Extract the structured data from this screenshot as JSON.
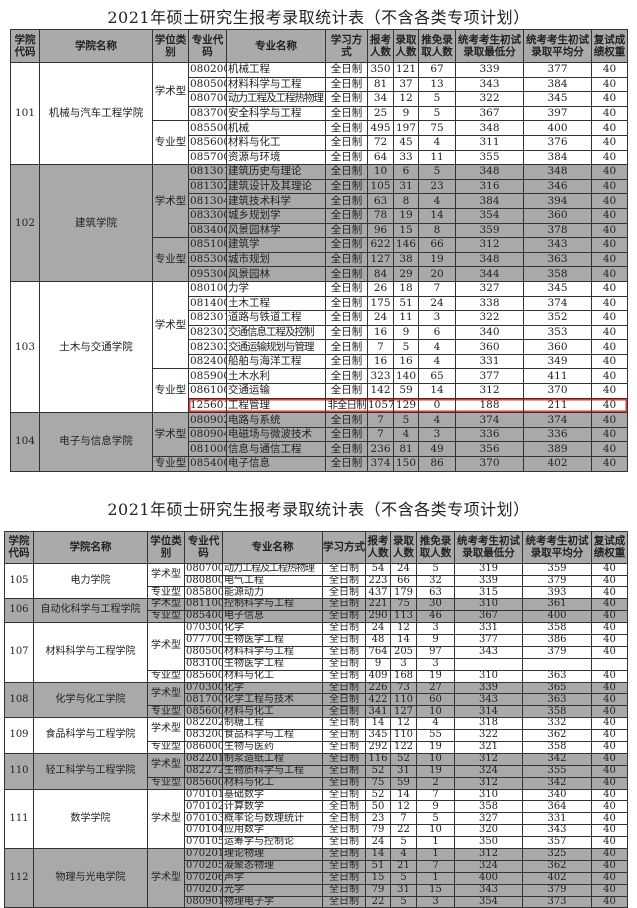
{
  "headers": [
    "学院代码",
    "学院名称",
    "学位类别",
    "专业代码",
    "专业名称",
    "学习方式",
    "报考人数",
    "录取人数",
    "推免录取人数",
    "统考考生初试录取最低分",
    "统考考生初试录取平均分",
    "复试成绩权重"
  ],
  "highlight_color": "#e53935",
  "shade_color": "#a9a9a9",
  "tables": [
    {
      "title": "2021年硕士研究生报考录取统计表（不含各类专项计划）",
      "colleges": [
        {
          "code": "101",
          "name": "机械与汽车工程学院",
          "shaded": false,
          "groups": [
            {
              "type": "学术型",
              "rows": [
                [
                  "080200",
                  "机械工程",
                  "全日制",
                  "350",
                  "121",
                  "67",
                  "339",
                  "377",
                  "40"
                ],
                [
                  "080500",
                  "材料科学与工程",
                  "全日制",
                  "81",
                  "37",
                  "13",
                  "343",
                  "384",
                  "40"
                ],
                [
                  "080700",
                  "动力工程及工程热物理",
                  "全日制",
                  "34",
                  "12",
                  "5",
                  "322",
                  "345",
                  "40"
                ],
                [
                  "083700",
                  "安全科学与工程",
                  "全日制",
                  "25",
                  "9",
                  "5",
                  "367",
                  "397",
                  "40"
                ]
              ]
            },
            {
              "type": "专业型",
              "rows": [
                [
                  "085500",
                  "机械",
                  "全日制",
                  "495",
                  "197",
                  "75",
                  "348",
                  "400",
                  "40"
                ],
                [
                  "085600",
                  "材料与化工",
                  "全日制",
                  "72",
                  "45",
                  "4",
                  "311",
                  "376",
                  "40"
                ],
                [
                  "085700",
                  "资源与环境",
                  "全日制",
                  "64",
                  "33",
                  "11",
                  "355",
                  "384",
                  "40"
                ]
              ]
            }
          ]
        },
        {
          "code": "102",
          "name": "建筑学院",
          "shaded": true,
          "groups": [
            {
              "type": "学术型",
              "rows": [
                [
                  "081301",
                  "建筑历史与理论",
                  "全日制",
                  "10",
                  "6",
                  "5",
                  "348",
                  "348",
                  "40"
                ],
                [
                  "081302",
                  "建筑设计及其理论",
                  "全日制",
                  "105",
                  "31",
                  "23",
                  "316",
                  "346",
                  "40"
                ],
                [
                  "081304",
                  "建筑技术科学",
                  "全日制",
                  "63",
                  "8",
                  "4",
                  "384",
                  "394",
                  "40"
                ],
                [
                  "083300",
                  "城乡规划学",
                  "全日制",
                  "78",
                  "19",
                  "14",
                  "354",
                  "360",
                  "40"
                ],
                [
                  "083400",
                  "风景园林学",
                  "全日制",
                  "96",
                  "15",
                  "8",
                  "359",
                  "378",
                  "40"
                ]
              ]
            },
            {
              "type": "专业型",
              "rows": [
                [
                  "085100",
                  "建筑学",
                  "全日制",
                  "622",
                  "146",
                  "66",
                  "312",
                  "343",
                  "40"
                ],
                [
                  "085300",
                  "城市规划",
                  "全日制",
                  "127",
                  "38",
                  "19",
                  "348",
                  "363",
                  "40"
                ],
                [
                  "095300",
                  "风景园林",
                  "全日制",
                  "84",
                  "29",
                  "20",
                  "344",
                  "358",
                  "40"
                ]
              ]
            }
          ]
        },
        {
          "code": "103",
          "name": "土木与交通学院",
          "shaded": false,
          "groups": [
            {
              "type": "学术型",
              "rows": [
                [
                  "080100",
                  "力学",
                  "全日制",
                  "26",
                  "18",
                  "7",
                  "327",
                  "345",
                  "40"
                ],
                [
                  "081400",
                  "土木工程",
                  "全日制",
                  "175",
                  "51",
                  "24",
                  "338",
                  "374",
                  "40"
                ],
                [
                  "082301",
                  "道路与铁道工程",
                  "全日制",
                  "24",
                  "11",
                  "3",
                  "322",
                  "352",
                  "40"
                ],
                [
                  "082302",
                  "交通信息工程及控制",
                  "全日制",
                  "16",
                  "9",
                  "6",
                  "340",
                  "353",
                  "40"
                ],
                [
                  "082303",
                  "交通运输规划与管理",
                  "全日制",
                  "7",
                  "5",
                  "4",
                  "360",
                  "360",
                  "40"
                ],
                [
                  "082400",
                  "船舶与海洋工程",
                  "全日制",
                  "16",
                  "16",
                  "4",
                  "331",
                  "349",
                  "40"
                ]
              ]
            },
            {
              "type": "专业型",
              "rows": [
                [
                  "085900",
                  "土木水利",
                  "全日制",
                  "323",
                  "140",
                  "65",
                  "377",
                  "411",
                  "40"
                ],
                [
                  "086100",
                  "交通运输",
                  "全日制",
                  "142",
                  "59",
                  "14",
                  "312",
                  "370",
                  "40"
                ],
                [
                  "125601",
                  "工程管理",
                  "非全日制",
                  "1057",
                  "129",
                  "0",
                  "188",
                  "211",
                  "40",
                  "highlight"
                ]
              ]
            }
          ]
        },
        {
          "code": "104",
          "name": "电子与信息学院",
          "shaded": true,
          "groups": [
            {
              "type": "学术型",
              "rows": [
                [
                  "080902",
                  "电路与系统",
                  "全日制",
                  "7",
                  "5",
                  "4",
                  "374",
                  "374",
                  "40"
                ],
                [
                  "080904",
                  "电磁场与微波技术",
                  "全日制",
                  "7",
                  "4",
                  "3",
                  "336",
                  "336",
                  "40"
                ],
                [
                  "081000",
                  "信息与通信工程",
                  "全日制",
                  "236",
                  "81",
                  "49",
                  "356",
                  "389",
                  "40"
                ]
              ]
            },
            {
              "type": "专业型",
              "rows": [
                [
                  "085400",
                  "电子信息",
                  "全日制",
                  "374",
                  "150",
                  "86",
                  "370",
                  "402",
                  "40"
                ]
              ]
            }
          ]
        }
      ]
    },
    {
      "title": "2021年硕士研究生报考录取统计表（不含各类专项计划）",
      "colleges": [
        {
          "code": "105",
          "name": "电力学院",
          "shaded": false,
          "groups": [
            {
              "type": "学术型",
              "rows": [
                [
                  "080700",
                  "动力工程及工程热物理",
                  "全日制",
                  "54",
                  "24",
                  "5",
                  "319",
                  "359",
                  "40"
                ],
                [
                  "080800",
                  "电气工程",
                  "全日制",
                  "223",
                  "66",
                  "32",
                  "339",
                  "379",
                  "40"
                ]
              ]
            },
            {
              "type": "专业型",
              "rows": [
                [
                  "085800",
                  "能源动力",
                  "全日制",
                  "437",
                  "179",
                  "63",
                  "315",
                  "393",
                  "40"
                ]
              ]
            }
          ]
        },
        {
          "code": "106",
          "name": "自动化科学与工程学院",
          "shaded": true,
          "groups": [
            {
              "type": "学术型",
              "rows": [
                [
                  "081100",
                  "控制科学与工程",
                  "全日制",
                  "221",
                  "75",
                  "30",
                  "310",
                  "361",
                  "40"
                ]
              ]
            },
            {
              "type": "专业型",
              "rows": [
                [
                  "085400",
                  "电子信息",
                  "全日制",
                  "290",
                  "113",
                  "46",
                  "367",
                  "400",
                  "40"
                ]
              ]
            }
          ]
        },
        {
          "code": "107",
          "name": "材料科学与工程学院",
          "shaded": false,
          "groups": [
            {
              "type": "学术型",
              "rows": [
                [
                  "070300",
                  "化学",
                  "全日制",
                  "24",
                  "12",
                  "3",
                  "331",
                  "358",
                  "40"
                ],
                [
                  "077700",
                  "生物医学工程",
                  "全日制",
                  "48",
                  "14",
                  "9",
                  "377",
                  "386",
                  "40"
                ],
                [
                  "080500",
                  "材料科学与工程",
                  "全日制",
                  "764",
                  "205",
                  "97",
                  "343",
                  "379",
                  "40"
                ],
                [
                  "083100",
                  "生物医学工程",
                  "全日制",
                  "9",
                  "3",
                  "3",
                  "",
                  "",
                  ""
                ]
              ]
            },
            {
              "type": "专业型",
              "rows": [
                [
                  "085600",
                  "材料与化工",
                  "全日制",
                  "409",
                  "168",
                  "19",
                  "310",
                  "363",
                  "40"
                ]
              ]
            }
          ]
        },
        {
          "code": "108",
          "name": "化学与化工学院",
          "shaded": true,
          "groups": [
            {
              "type": "学术型",
              "rows": [
                [
                  "070300",
                  "化学",
                  "全日制",
                  "226",
                  "73",
                  "27",
                  "339",
                  "365",
                  "40"
                ],
                [
                  "081700",
                  "化学工程与技术",
                  "全日制",
                  "422",
                  "110",
                  "60",
                  "343",
                  "363",
                  "40"
                ]
              ]
            },
            {
              "type": "专业型",
              "rows": [
                [
                  "085600",
                  "材料与化工",
                  "全日制",
                  "341",
                  "127",
                  "10",
                  "314",
                  "358",
                  "40"
                ]
              ]
            }
          ]
        },
        {
          "code": "109",
          "name": "食品科学与工程学院",
          "shaded": false,
          "groups": [
            {
              "type": "学术型",
              "rows": [
                [
                  "082202",
                  "制糖工程",
                  "全日制",
                  "14",
                  "12",
                  "4",
                  "318",
                  "332",
                  "40"
                ],
                [
                  "083200",
                  "食品科学与工程",
                  "全日制",
                  "345",
                  "110",
                  "55",
                  "322",
                  "362",
                  "40"
                ]
              ]
            },
            {
              "type": "专业型",
              "rows": [
                [
                  "086000",
                  "生物与医药",
                  "全日制",
                  "292",
                  "122",
                  "19",
                  "321",
                  "358",
                  "40"
                ]
              ]
            }
          ]
        },
        {
          "code": "110",
          "name": "轻工科学与工程学院",
          "shaded": true,
          "groups": [
            {
              "type": "学术型",
              "rows": [
                [
                  "082201",
                  "制浆造纸工程",
                  "全日制",
                  "116",
                  "52",
                  "10",
                  "312",
                  "342",
                  "40"
                ],
                [
                  "082272",
                  "生物质科学与工程",
                  "全日制",
                  "52",
                  "31",
                  "19",
                  "324",
                  "355",
                  "40"
                ]
              ]
            },
            {
              "type": "专业型",
              "rows": [
                [
                  "085600",
                  "材料与化工",
                  "全日制",
                  "75",
                  "59",
                  "2",
                  "312",
                  "342",
                  "40"
                ]
              ]
            }
          ]
        },
        {
          "code": "111",
          "name": "数学学院",
          "shaded": false,
          "groups": [
            {
              "type": "学术型",
              "rows": [
                [
                  "070101",
                  "基础数学",
                  "全日制",
                  "52",
                  "14",
                  "7",
                  "310",
                  "340",
                  "40"
                ],
                [
                  "070102",
                  "计算数学",
                  "全日制",
                  "50",
                  "12",
                  "9",
                  "358",
                  "364",
                  "40"
                ],
                [
                  "070103",
                  "概率论与数理统计",
                  "全日制",
                  "23",
                  "7",
                  "5",
                  "327",
                  "331",
                  "40"
                ],
                [
                  "070104",
                  "应用数学",
                  "全日制",
                  "79",
                  "22",
                  "10",
                  "320",
                  "343",
                  "40"
                ],
                [
                  "070105",
                  "运筹学与控制论",
                  "全日制",
                  "24",
                  "5",
                  "1",
                  "350",
                  "357",
                  "40"
                ]
              ]
            }
          ]
        },
        {
          "code": "112",
          "name": "物理与光电学院",
          "shaded": true,
          "groups": [
            {
              "type": "学术型",
              "rows": [
                [
                  "070201",
                  "理论物理",
                  "全日制",
                  "14",
                  "4",
                  "1",
                  "312",
                  "325",
                  "40"
                ],
                [
                  "070205",
                  "凝聚态物理",
                  "全日制",
                  "51",
                  "21",
                  "7",
                  "324",
                  "362",
                  "40"
                ],
                [
                  "070206",
                  "声学",
                  "全日制",
                  "15",
                  "5",
                  "1",
                  "400",
                  "402",
                  "40"
                ],
                [
                  "070207",
                  "光学",
                  "全日制",
                  "79",
                  "31",
                  "15",
                  "343",
                  "379",
                  "40"
                ],
                [
                  "080901",
                  "物理电子学",
                  "全日制",
                  "22",
                  "5",
                  "3",
                  "354",
                  "373",
                  "40"
                ]
              ]
            }
          ]
        }
      ]
    }
  ]
}
